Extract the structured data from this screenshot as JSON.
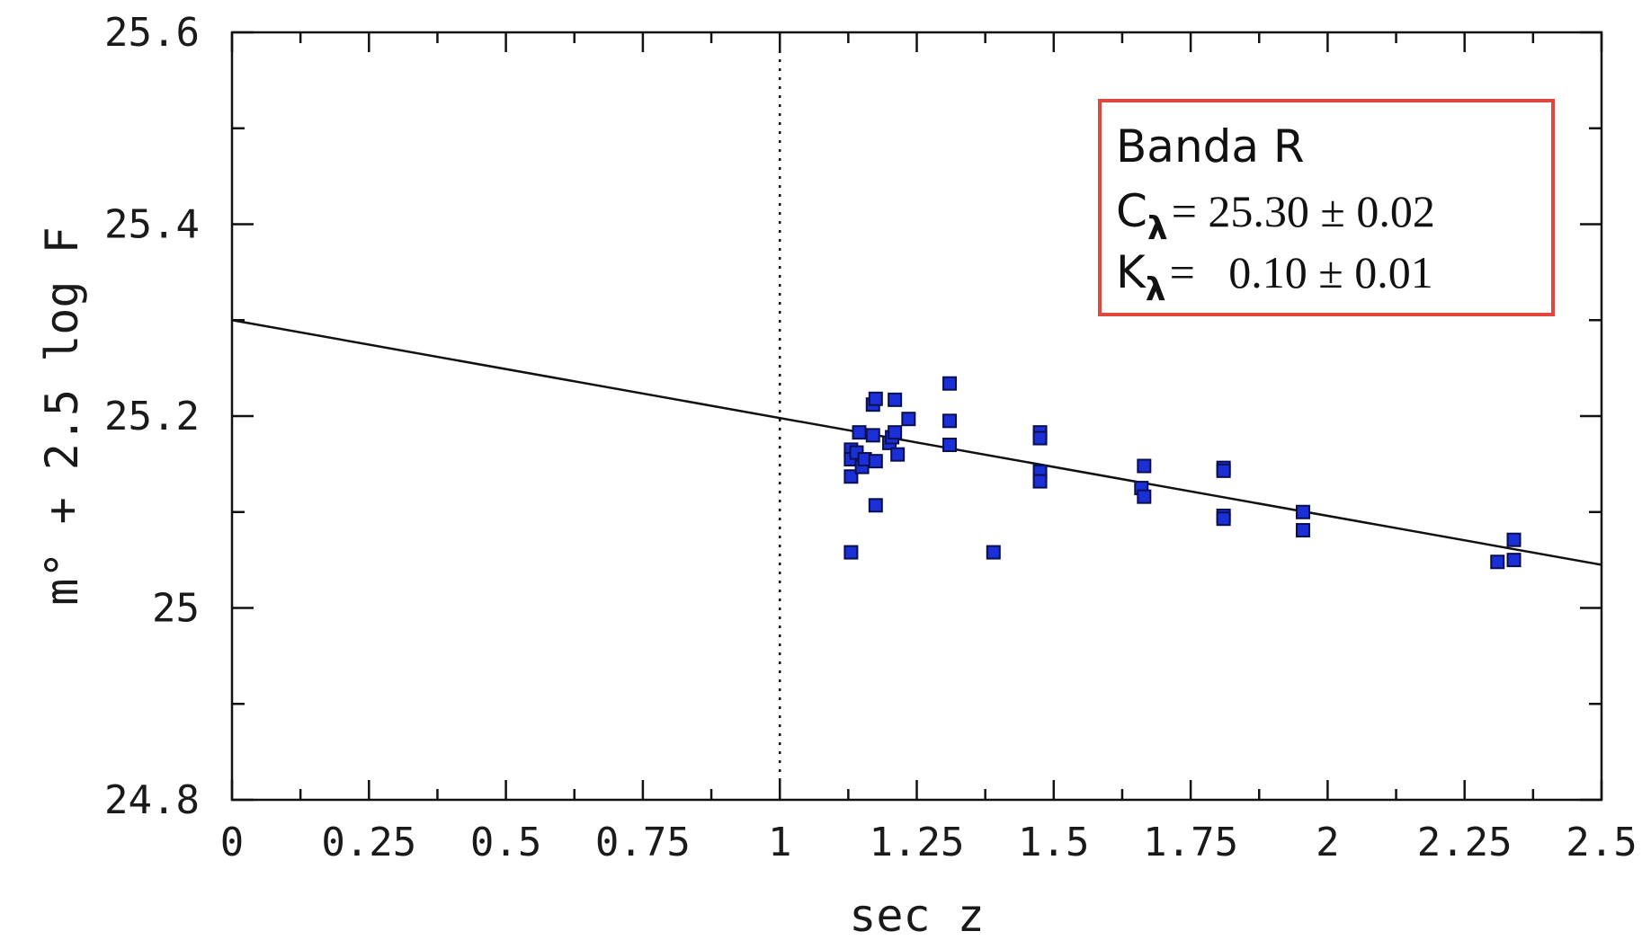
{
  "chart_data": {
    "type": "scatter",
    "xlabel": "sec z",
    "ylabel": "m° + 2.5 log F",
    "xlim": [
      0,
      2.5
    ],
    "ylim": [
      24.8,
      25.6
    ],
    "xticks": [
      {
        "value": 0,
        "label": "0"
      },
      {
        "value": 0.25,
        "label": "0.25"
      },
      {
        "value": 0.5,
        "label": "0.5"
      },
      {
        "value": 0.75,
        "label": "0.75"
      },
      {
        "value": 1,
        "label": "1"
      },
      {
        "value": 1.25,
        "label": "1.25"
      },
      {
        "value": 1.5,
        "label": "1.5"
      },
      {
        "value": 1.75,
        "label": "1.75"
      },
      {
        "value": 2,
        "label": "2"
      },
      {
        "value": 2.25,
        "label": "2.25"
      },
      {
        "value": 2.5,
        "label": "2.5"
      }
    ],
    "yticks": [
      {
        "value": 24.8,
        "label": "24.8"
      },
      {
        "value": 25,
        "label": "25"
      },
      {
        "value": 25.2,
        "label": "25.2"
      },
      {
        "value": 25.4,
        "label": "25.4"
      },
      {
        "value": 25.6,
        "label": "25.6"
      }
    ],
    "x_minor_step": 0.125,
    "y_minor_step": 0.1,
    "reference_line_x": 1,
    "fit_line": {
      "x": [
        0,
        2.5
      ],
      "y": [
        25.3,
        25.045
      ]
    },
    "points": [
      {
        "x": 1.13,
        "y": 25.165
      },
      {
        "x": 1.13,
        "y": 25.155
      },
      {
        "x": 1.13,
        "y": 25.137
      },
      {
        "x": 1.14,
        "y": 25.162
      },
      {
        "x": 1.145,
        "y": 25.183
      },
      {
        "x": 1.15,
        "y": 25.147
      },
      {
        "x": 1.155,
        "y": 25.155
      },
      {
        "x": 1.17,
        "y": 25.212
      },
      {
        "x": 1.175,
        "y": 25.218
      },
      {
        "x": 1.17,
        "y": 25.18
      },
      {
        "x": 1.175,
        "y": 25.153
      },
      {
        "x": 1.175,
        "y": 25.107
      },
      {
        "x": 1.13,
        "y": 25.058
      },
      {
        "x": 1.2,
        "y": 25.172
      },
      {
        "x": 1.205,
        "y": 25.178
      },
      {
        "x": 1.21,
        "y": 25.183
      },
      {
        "x": 1.21,
        "y": 25.217
      },
      {
        "x": 1.215,
        "y": 25.16
      },
      {
        "x": 1.235,
        "y": 25.197
      },
      {
        "x": 1.31,
        "y": 25.234
      },
      {
        "x": 1.31,
        "y": 25.195
      },
      {
        "x": 1.31,
        "y": 25.17
      },
      {
        "x": 1.39,
        "y": 25.058
      },
      {
        "x": 1.475,
        "y": 25.183
      },
      {
        "x": 1.475,
        "y": 25.177
      },
      {
        "x": 1.475,
        "y": 25.142
      },
      {
        "x": 1.475,
        "y": 25.132
      },
      {
        "x": 1.665,
        "y": 25.148
      },
      {
        "x": 1.66,
        "y": 25.125
      },
      {
        "x": 1.665,
        "y": 25.116
      },
      {
        "x": 1.81,
        "y": 25.146
      },
      {
        "x": 1.81,
        "y": 25.143
      },
      {
        "x": 1.81,
        "y": 25.096
      },
      {
        "x": 1.81,
        "y": 25.093
      },
      {
        "x": 1.955,
        "y": 25.1
      },
      {
        "x": 1.955,
        "y": 25.081
      },
      {
        "x": 2.31,
        "y": 25.048
      },
      {
        "x": 2.34,
        "y": 25.071
      },
      {
        "x": 2.34,
        "y": 25.05
      }
    ],
    "marker_color": "#1a2fd6",
    "legend_box_color": "#e0483c",
    "annotation": {
      "title": "Banda R",
      "c_symbol": "C",
      "c_subscript": "λ",
      "c_text": "= 25.30 ± 0.02",
      "k_symbol": "K",
      "k_subscript": "λ",
      "k_text": "=   0.10 ± 0.01"
    }
  }
}
